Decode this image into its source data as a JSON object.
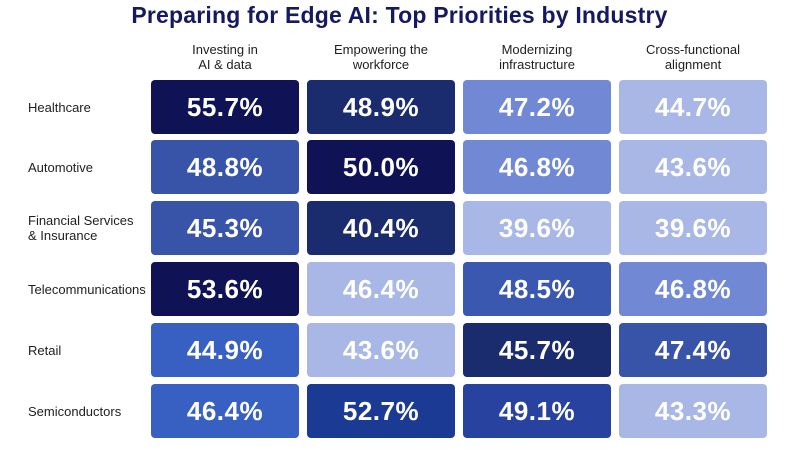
{
  "chart_data": {
    "type": "heatmap",
    "title": "Preparing for Edge AI: Top Priorities by Industry",
    "columns": [
      "Investing in\nAI & data",
      "Empowering the\nworkforce",
      "Modernizing\ninfrastructure",
      "Cross-functional\nalignment"
    ],
    "rows": [
      "Healthcare",
      "Automotive",
      "Financial Services\n& Insurance",
      "Telecommunications",
      "Retail",
      "Semiconductors"
    ],
    "values": [
      [
        55.7,
        48.9,
        47.2,
        44.7
      ],
      [
        48.8,
        50.0,
        46.8,
        43.6
      ],
      [
        45.3,
        40.4,
        39.6,
        39.6
      ],
      [
        53.6,
        46.4,
        48.5,
        46.8
      ],
      [
        44.9,
        43.6,
        45.7,
        47.4
      ],
      [
        46.4,
        52.7,
        49.1,
        43.3
      ]
    ],
    "value_suffix": "%",
    "colors": [
      [
        "#0f1254",
        "#1b2c6e",
        "#7189d4",
        "#a8b7e6"
      ],
      [
        "#3754a8",
        "#0f1254",
        "#7189d4",
        "#a8b7e6"
      ],
      [
        "#3754a8",
        "#1b2c6e",
        "#a8b7e6",
        "#a8b7e6"
      ],
      [
        "#0f1254",
        "#a8b7e6",
        "#3b58b0",
        "#7189d4"
      ],
      [
        "#3760c2",
        "#a8b7e6",
        "#1b2c6e",
        "#3754a8"
      ],
      [
        "#3760c2",
        "#1b3a93",
        "#2842a0",
        "#a8b7e6"
      ]
    ]
  }
}
